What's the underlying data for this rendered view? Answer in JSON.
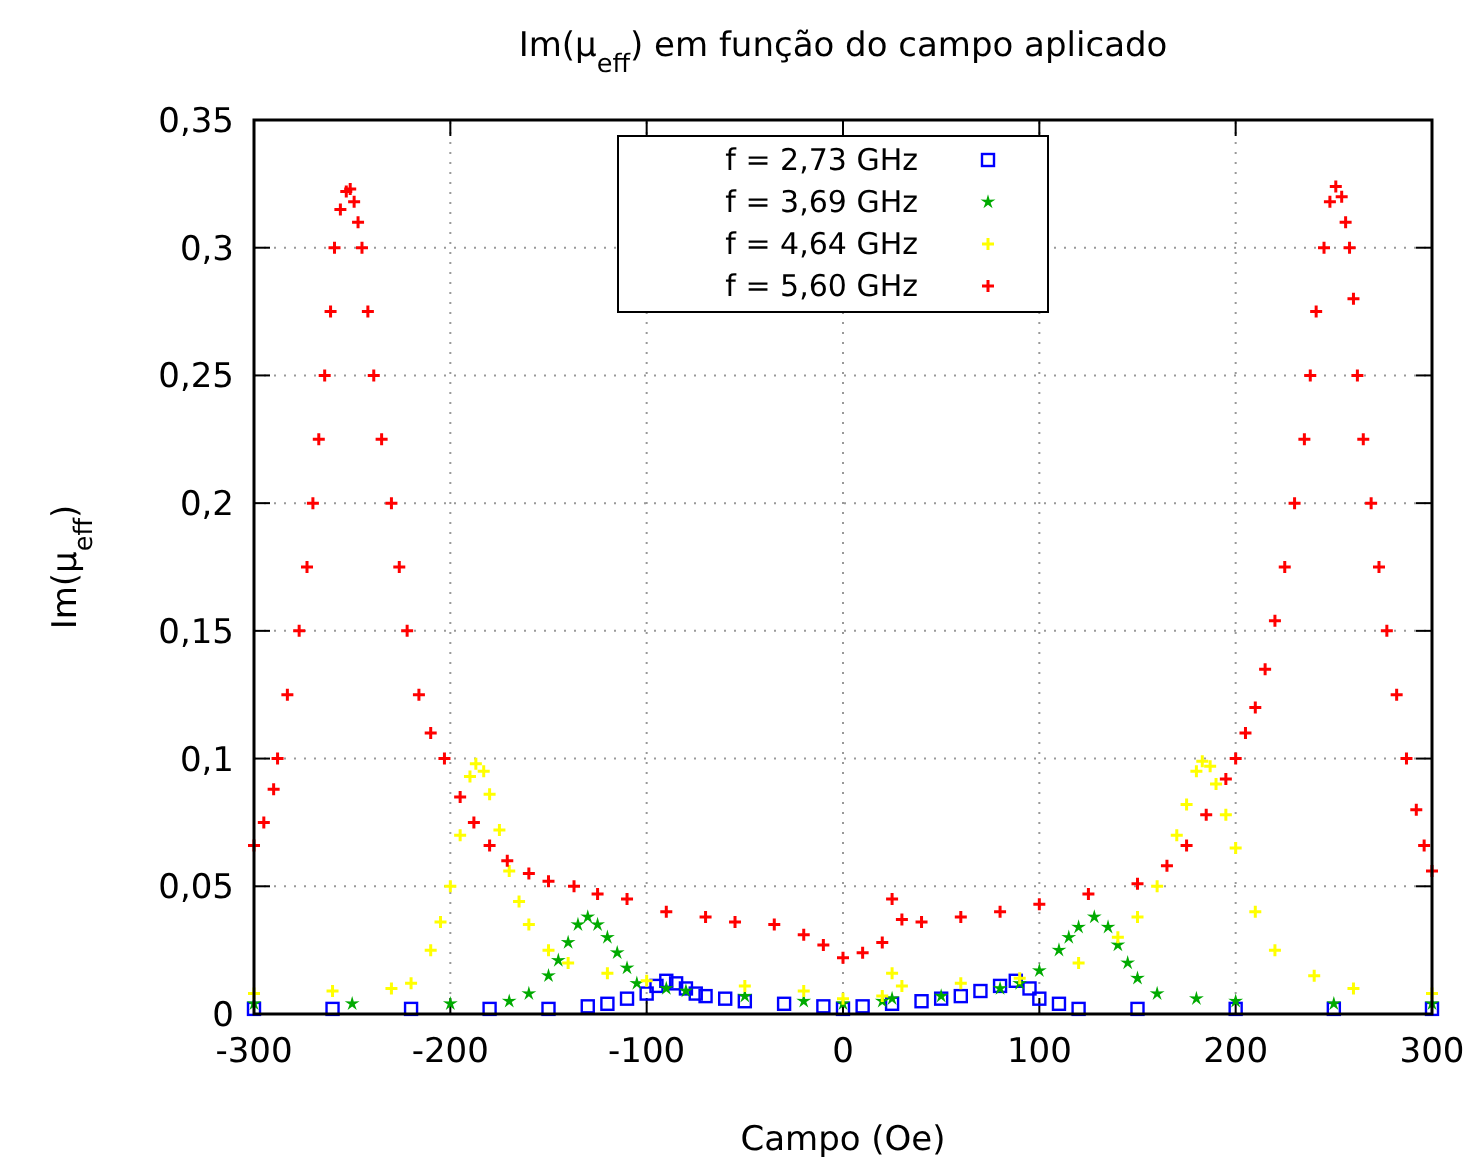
{
  "chart_data": {
    "type": "scatter",
    "title": "Im(μ$_{eff}$) em função do campo aplicado",
    "xlabel": "Campo (Oe)",
    "ylabel": "Im(μ$_{eff}$)",
    "xlim": [
      -300,
      300
    ],
    "xticks": [
      -300,
      -200,
      -100,
      0,
      100,
      200,
      300
    ],
    "ylim": [
      0,
      0.35
    ],
    "yticks": [
      0,
      {
        "value": 0.05,
        "label": "0,05"
      },
      {
        "value": 0.1,
        "label": "0,1"
      },
      {
        "value": 0.15,
        "label": "0,15"
      },
      {
        "value": 0.2,
        "label": "0,2"
      },
      {
        "value": 0.25,
        "label": "0,25"
      },
      {
        "value": 0.3,
        "label": "0,3"
      },
      {
        "value": 0.35,
        "label": "0,35"
      }
    ],
    "grid": true,
    "legend": "top",
    "series": [
      {
        "name": "f = 2,73 GHz",
        "color": "#0000ff",
        "marker": "square",
        "x": [
          -300,
          -260,
          -220,
          -180,
          -150,
          -130,
          -120,
          -110,
          -100,
          -95,
          -90,
          -85,
          -80,
          -75,
          -70,
          -60,
          -50,
          -30,
          -10,
          0,
          10,
          25,
          40,
          50,
          60,
          70,
          80,
          88,
          95,
          100,
          110,
          120,
          150,
          200,
          250,
          300
        ],
        "values": [
          0.002,
          0.002,
          0.002,
          0.002,
          0.002,
          0.003,
          0.004,
          0.006,
          0.008,
          0.011,
          0.013,
          0.012,
          0.01,
          0.008,
          0.007,
          0.006,
          0.005,
          0.004,
          0.003,
          0.002,
          0.003,
          0.004,
          0.005,
          0.006,
          0.007,
          0.009,
          0.011,
          0.013,
          0.01,
          0.006,
          0.004,
          0.002,
          0.002,
          0.002,
          0.002,
          0.002
        ]
      },
      {
        "name": "f = 3,69 GHz",
        "color": "#00aa00",
        "marker": "star",
        "x": [
          -300,
          -250,
          -200,
          -170,
          -160,
          -150,
          -145,
          -140,
          -135,
          -130,
          -125,
          -120,
          -115,
          -110,
          -105,
          -90,
          -80,
          -50,
          -20,
          0,
          20,
          25,
          50,
          80,
          90,
          100,
          110,
          115,
          120,
          128,
          135,
          140,
          145,
          150,
          160,
          180,
          200,
          250,
          300
        ],
        "values": [
          0.004,
          0.004,
          0.004,
          0.005,
          0.008,
          0.015,
          0.021,
          0.028,
          0.035,
          0.038,
          0.035,
          0.03,
          0.024,
          0.018,
          0.012,
          0.01,
          0.009,
          0.007,
          0.005,
          0.004,
          0.005,
          0.006,
          0.007,
          0.01,
          0.012,
          0.017,
          0.025,
          0.03,
          0.034,
          0.038,
          0.034,
          0.027,
          0.02,
          0.014,
          0.008,
          0.006,
          0.005,
          0.004,
          0.004
        ]
      },
      {
        "name": "f = 4,64 GHz",
        "color": "#ffff00",
        "marker": "cross",
        "x": [
          -300,
          -260,
          -230,
          -220,
          -210,
          -205,
          -200,
          -195,
          -190,
          -187,
          -183,
          -180,
          -175,
          -170,
          -165,
          -160,
          -150,
          -140,
          -120,
          -100,
          -50,
          -20,
          0,
          20,
          25,
          30,
          60,
          90,
          120,
          140,
          150,
          160,
          170,
          175,
          180,
          183,
          187,
          190,
          195,
          200,
          210,
          220,
          240,
          260,
          300
        ],
        "values": [
          0.008,
          0.009,
          0.01,
          0.012,
          0.025,
          0.036,
          0.05,
          0.07,
          0.093,
          0.098,
          0.095,
          0.086,
          0.072,
          0.056,
          0.044,
          0.035,
          0.025,
          0.02,
          0.016,
          0.013,
          0.011,
          0.009,
          0.006,
          0.007,
          0.016,
          0.011,
          0.012,
          0.014,
          0.02,
          0.03,
          0.038,
          0.05,
          0.07,
          0.082,
          0.095,
          0.099,
          0.097,
          0.09,
          0.078,
          0.065,
          0.04,
          0.025,
          0.015,
          0.01,
          0.008
        ]
      },
      {
        "name": "f = 5,60 GHz",
        "color": "#ff0000",
        "marker": "cross",
        "x": [
          -300,
          -295,
          -290,
          -288,
          -283,
          -277,
          -273,
          -270,
          -267,
          -264,
          -261,
          -259,
          -256,
          -253,
          -251,
          -249,
          -247,
          -245,
          -242,
          -239,
          -235,
          -230,
          -226,
          -222,
          -216,
          -210,
          -203,
          -195,
          -188,
          -180,
          -171,
          -160,
          -150,
          -137,
          -125,
          -110,
          -90,
          -70,
          -55,
          -35,
          -20,
          -10,
          0,
          10,
          20,
          25,
          30,
          40,
          60,
          80,
          100,
          125,
          150,
          165,
          175,
          185,
          195,
          200,
          205,
          210,
          215,
          220,
          225,
          230,
          235,
          238,
          241,
          245,
          248,
          251,
          254,
          256,
          258,
          260,
          262,
          265,
          269,
          273,
          277,
          282,
          287,
          292,
          296,
          300
        ],
        "values": [
          0.066,
          0.075,
          0.088,
          0.1,
          0.125,
          0.15,
          0.175,
          0.2,
          0.225,
          0.25,
          0.275,
          0.3,
          0.315,
          0.322,
          0.323,
          0.318,
          0.31,
          0.3,
          0.275,
          0.25,
          0.225,
          0.2,
          0.175,
          0.15,
          0.125,
          0.11,
          0.1,
          0.085,
          0.075,
          0.066,
          0.06,
          0.055,
          0.052,
          0.05,
          0.047,
          0.045,
          0.04,
          0.038,
          0.036,
          0.035,
          0.031,
          0.027,
          0.022,
          0.024,
          0.028,
          0.045,
          0.037,
          0.036,
          0.038,
          0.04,
          0.043,
          0.047,
          0.051,
          0.058,
          0.066,
          0.078,
          0.092,
          0.1,
          0.11,
          0.12,
          0.135,
          0.154,
          0.175,
          0.2,
          0.225,
          0.25,
          0.275,
          0.3,
          0.318,
          0.324,
          0.32,
          0.31,
          0.3,
          0.28,
          0.25,
          0.225,
          0.2,
          0.175,
          0.15,
          0.125,
          0.1,
          0.08,
          0.066,
          0.056
        ]
      }
    ]
  }
}
